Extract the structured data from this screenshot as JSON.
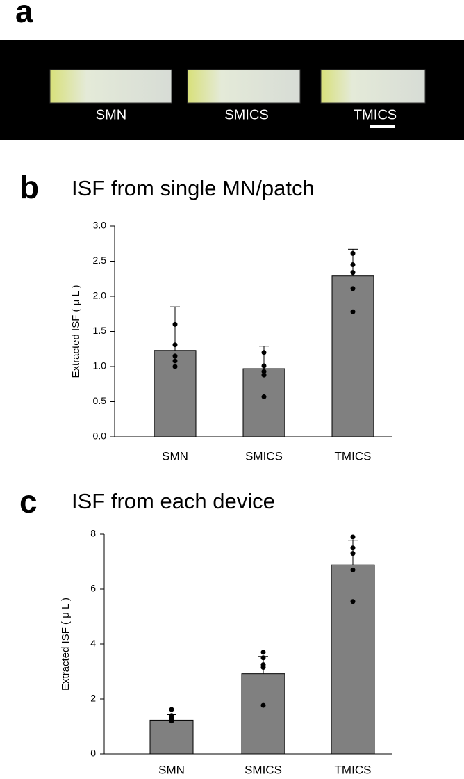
{
  "panel_a": {
    "letter": "a",
    "labels": [
      "SMN",
      "SMICS",
      "TMICS"
    ]
  },
  "chart_data": [
    {
      "type": "bar",
      "panel": "b",
      "title": "ISF from single MN/patch",
      "y_label": "Extracted ISF ( μ L )",
      "categories": [
        "SMN",
        "SMICS",
        "TMICS"
      ],
      "values": [
        1.23,
        0.97,
        2.29
      ],
      "errors": [
        0.62,
        0.32,
        0.38
      ],
      "points": [
        [
          1.6,
          1.31,
          1.15,
          1.08,
          1.0
        ],
        [
          1.2,
          1.01,
          0.93,
          0.88,
          0.57
        ],
        [
          2.61,
          2.45,
          2.34,
          2.11,
          1.78
        ]
      ],
      "color": "#808080",
      "ylim": [
        0,
        3
      ],
      "yticks": [
        {
          "value": 0,
          "label": "0.0"
        },
        0.5,
        {
          "value": 1,
          "label": "1.0"
        },
        1.5,
        {
          "value": 2,
          "label": "2.0"
        },
        2.5,
        {
          "value": 3,
          "label": "3.0"
        }
      ]
    },
    {
      "type": "bar",
      "panel": "c",
      "title": "ISF from each device",
      "y_label": "Extracted ISF ( μ L )",
      "categories": [
        "SMN",
        "SMICS",
        "TMICS"
      ],
      "values": [
        1.23,
        2.92,
        6.88
      ],
      "errors": [
        0.2,
        0.63,
        0.9
      ],
      "points": [
        [
          1.62,
          1.4,
          1.3,
          1.25,
          1.2
        ],
        [
          3.7,
          3.5,
          3.25,
          3.15,
          1.77
        ],
        [
          7.9,
          7.5,
          7.3,
          6.7,
          5.55
        ]
      ],
      "color": "#808080",
      "ylim": [
        0,
        8
      ],
      "yticks": [
        0,
        2,
        4,
        6,
        8
      ]
    }
  ]
}
